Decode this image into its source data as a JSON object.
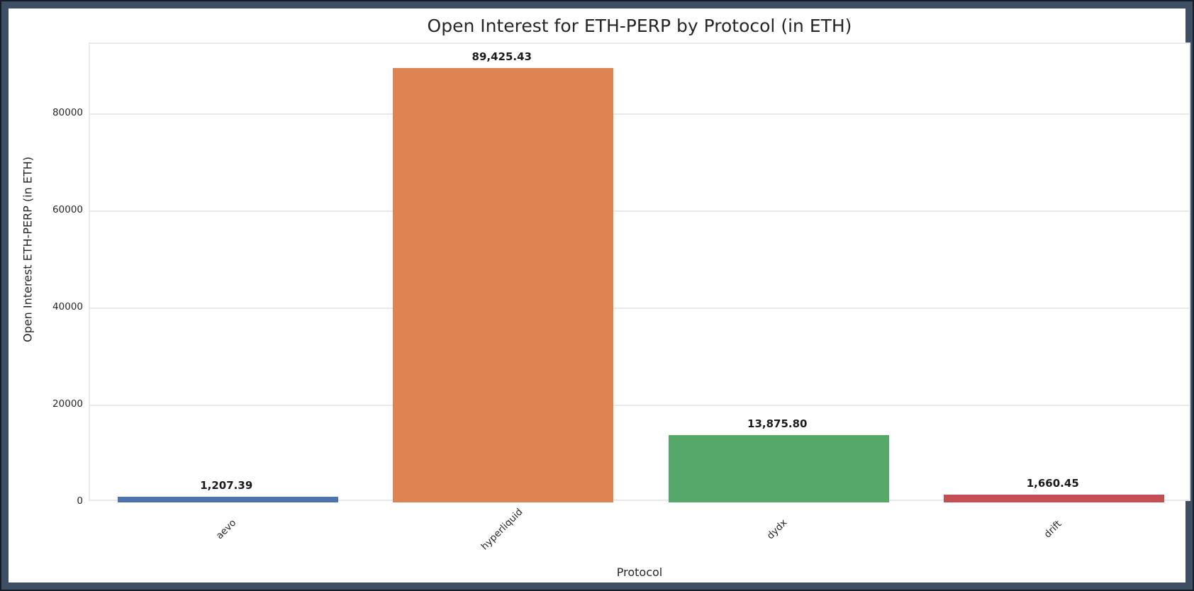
{
  "frame": {
    "outer_line_color": "#141e29",
    "border_color": "#3e4f63",
    "figure_background": "#ffffff"
  },
  "chart_data": {
    "type": "bar",
    "title": "Open Interest for ETH-PERP by Protocol (in ETH)",
    "xlabel": "Protocol",
    "ylabel": "Open Interest ETH-PERP (in ETH)",
    "categories": [
      "aevo",
      "hyperliquid",
      "dydx",
      "drift"
    ],
    "values": [
      1207.39,
      89425.43,
      13875.8,
      1660.45
    ],
    "value_labels": [
      "1,207.39",
      "89,425.43",
      "13,875.80",
      "1,660.45"
    ],
    "bar_colors": [
      "#4c72b0",
      "#dd8452",
      "#55a868",
      "#c44e52"
    ],
    "yticks": [
      0,
      20000,
      40000,
      60000,
      80000
    ],
    "ytick_labels": [
      "0",
      "20000",
      "40000",
      "60000",
      "80000"
    ],
    "ylim": [
      0,
      94452
    ],
    "xtick_rotation": 45,
    "grid": true,
    "gridline_color": "#e9e9e9",
    "legend_position": "none",
    "bar_width_fraction": 0.8
  }
}
